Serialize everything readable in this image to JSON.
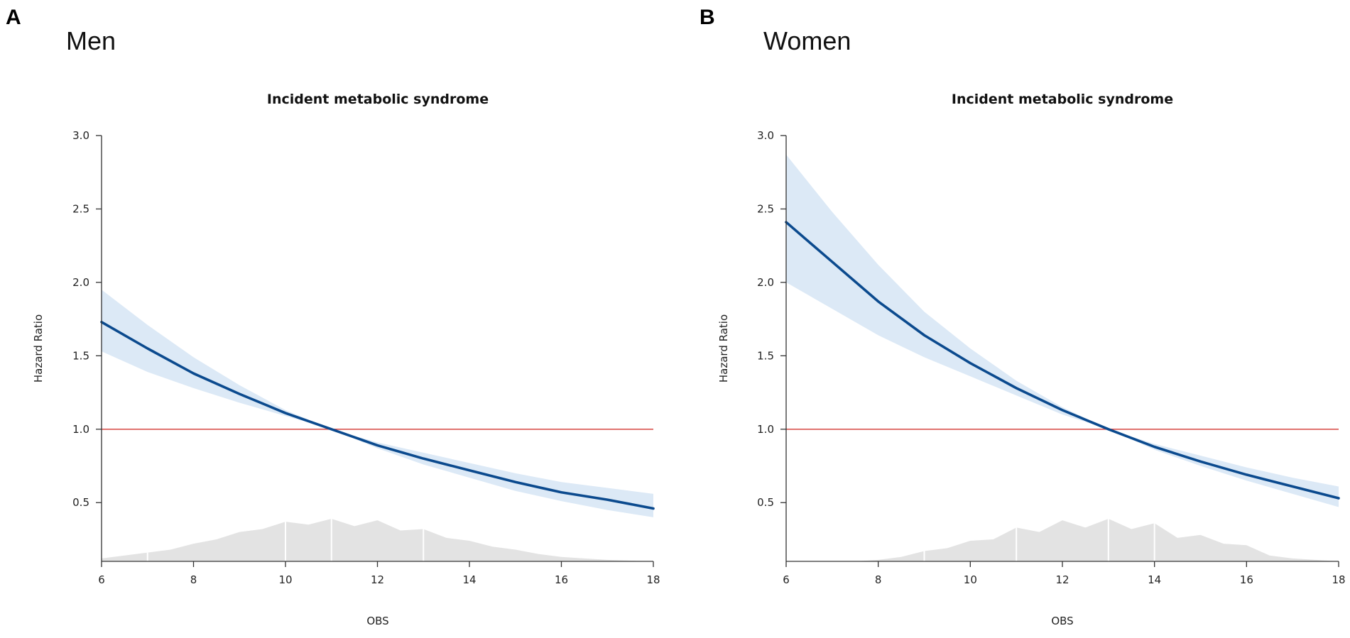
{
  "colors": {
    "hr_line": "#0b4a8e",
    "ci_band": "#dce9f6",
    "reference_line": "#d9534f",
    "density": "#e3e3e3",
    "density_lines": "#ffffff"
  },
  "chart_data": [
    {
      "type": "line",
      "panel_label": "A",
      "panel_title": "Men",
      "title": "Incident metabolic syndrome",
      "xlabel": "OBS",
      "ylabel": "Hazard Ratio",
      "xlim": [
        6,
        18
      ],
      "ylim": [
        0.1,
        3.0
      ],
      "xticks": [
        6,
        8,
        10,
        12,
        14,
        16,
        18
      ],
      "yticks": [
        0.5,
        1.0,
        1.5,
        2.0,
        2.5,
        3.0
      ],
      "ytick_labels": [
        "0.5",
        "1.0",
        "1.5",
        "2.0",
        "2.5",
        "3.0"
      ],
      "reference_line": 1.0,
      "series": [
        {
          "name": "Hazard Ratio",
          "x": [
            6,
            7,
            8,
            9,
            10,
            11,
            12,
            13,
            14,
            15,
            16,
            17,
            18
          ],
          "values": [
            1.73,
            1.55,
            1.38,
            1.24,
            1.11,
            1.0,
            0.89,
            0.8,
            0.72,
            0.64,
            0.57,
            0.52,
            0.46
          ]
        },
        {
          "name": "Upper 95% CI",
          "x": [
            6,
            7,
            8,
            9,
            10,
            11,
            12,
            13,
            14,
            15,
            16,
            17,
            18
          ],
          "values": [
            1.95,
            1.71,
            1.49,
            1.3,
            1.13,
            1.0,
            0.91,
            0.84,
            0.77,
            0.7,
            0.64,
            0.6,
            0.56
          ]
        },
        {
          "name": "Lower 95% CI",
          "x": [
            6,
            7,
            8,
            9,
            10,
            11,
            12,
            13,
            14,
            15,
            16,
            17,
            18
          ],
          "values": [
            1.53,
            1.39,
            1.28,
            1.18,
            1.09,
            1.0,
            0.87,
            0.76,
            0.67,
            0.58,
            0.51,
            0.45,
            0.4
          ]
        },
        {
          "name": "Distribution",
          "x": [
            6,
            6.5,
            7,
            7.5,
            8,
            8.5,
            9,
            9.5,
            10,
            10.5,
            11,
            11.5,
            12,
            12.5,
            13,
            13.5,
            14,
            14.5,
            15,
            15.5,
            16,
            16.5,
            17,
            17.5,
            18
          ],
          "values": [
            0.12,
            0.14,
            0.16,
            0.18,
            0.22,
            0.25,
            0.3,
            0.32,
            0.37,
            0.35,
            0.39,
            0.34,
            0.38,
            0.31,
            0.32,
            0.26,
            0.24,
            0.2,
            0.18,
            0.15,
            0.13,
            0.12,
            0.11,
            0.105,
            0.1
          ]
        }
      ],
      "density_markers": [
        7,
        10,
        11,
        13
      ]
    },
    {
      "type": "line",
      "panel_label": "B",
      "panel_title": "Women",
      "title": "Incident metabolic syndrome",
      "xlabel": "OBS",
      "ylabel": "Hazard Ratio",
      "xlim": [
        6,
        18
      ],
      "ylim": [
        0.1,
        3.0
      ],
      "xticks": [
        6,
        8,
        10,
        12,
        14,
        16,
        18
      ],
      "yticks": [
        0.5,
        1.0,
        1.5,
        2.0,
        2.5,
        3.0
      ],
      "ytick_labels": [
        "0.5",
        "1.0",
        "1.5",
        "2.0",
        "2.5",
        "3.0"
      ],
      "reference_line": 1.0,
      "series": [
        {
          "name": "Hazard Ratio",
          "x": [
            6,
            7,
            8,
            9,
            10,
            11,
            12,
            13,
            14,
            15,
            16,
            17,
            18
          ],
          "values": [
            2.41,
            2.14,
            1.87,
            1.64,
            1.45,
            1.28,
            1.13,
            1.0,
            0.88,
            0.78,
            0.69,
            0.61,
            0.53
          ]
        },
        {
          "name": "Upper 95% CI",
          "x": [
            6,
            7,
            8,
            9,
            10,
            11,
            12,
            13,
            14,
            15,
            16,
            17,
            18
          ],
          "values": [
            2.87,
            2.48,
            2.12,
            1.8,
            1.55,
            1.33,
            1.15,
            1.0,
            0.9,
            0.82,
            0.74,
            0.67,
            0.61
          ]
        },
        {
          "name": "Lower 95% CI",
          "x": [
            6,
            7,
            8,
            9,
            10,
            11,
            12,
            13,
            14,
            15,
            16,
            17,
            18
          ],
          "values": [
            2.0,
            1.82,
            1.64,
            1.49,
            1.36,
            1.23,
            1.1,
            1.0,
            0.86,
            0.75,
            0.65,
            0.56,
            0.47
          ]
        },
        {
          "name": "Distribution",
          "x": [
            6,
            6.5,
            7,
            7.5,
            8,
            8.5,
            9,
            9.5,
            10,
            10.5,
            11,
            11.5,
            12,
            12.5,
            13,
            13.5,
            14,
            14.5,
            15,
            15.5,
            16,
            16.5,
            17,
            17.5,
            18
          ],
          "values": [
            0.1,
            0.1,
            0.1,
            0.1,
            0.11,
            0.13,
            0.17,
            0.19,
            0.24,
            0.25,
            0.33,
            0.3,
            0.38,
            0.33,
            0.39,
            0.32,
            0.36,
            0.26,
            0.28,
            0.22,
            0.21,
            0.14,
            0.12,
            0.11,
            0.1
          ]
        }
      ],
      "density_markers": [
        9,
        11,
        13,
        14
      ]
    }
  ]
}
